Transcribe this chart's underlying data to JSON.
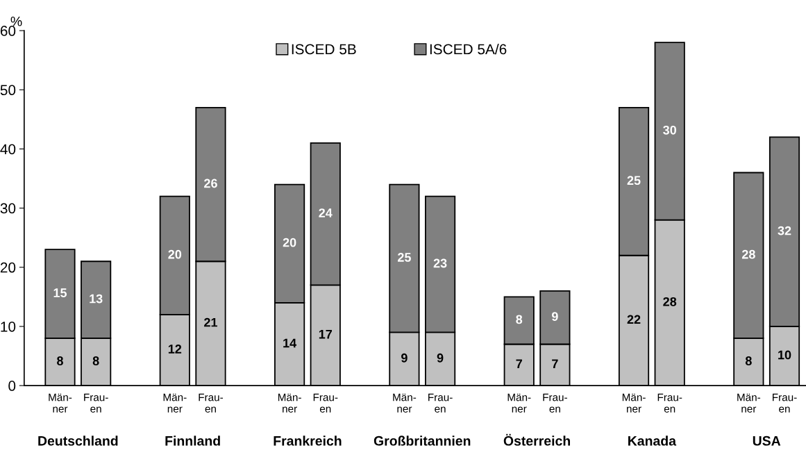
{
  "chart_data": {
    "type": "bar",
    "stacked": true,
    "ylabel": "%",
    "categories": [
      "Män-\nner",
      "Frau-\nen",
      "Män-\nner",
      "Frau-\nen",
      "Män-\nner",
      "Frau-\nen",
      "Män-\nner",
      "Frau-\nen",
      "Män-\nner",
      "Frau-\nen",
      "Män-\nner",
      "Frau-\nen",
      "Män-\nner",
      "Frau-\nen"
    ],
    "series": [
      {
        "name": "ISCED 5B",
        "color": "#c0c0c0",
        "values": [
          8,
          8,
          12,
          21,
          14,
          17,
          9,
          9,
          7,
          7,
          22,
          28,
          8,
          10
        ]
      },
      {
        "name": "ISCED 5A/6",
        "color": "#808080",
        "values": [
          15,
          13,
          20,
          26,
          20,
          24,
          25,
          23,
          8,
          9,
          25,
          30,
          28,
          32
        ]
      }
    ],
    "annotations": [
      "Deutschland",
      "Finnland",
      "Frankreich",
      "Großbritannien",
      "Österreich",
      "Kanada",
      "USA"
    ],
    "ylim": [
      0,
      60
    ],
    "yticks": [
      0,
      10,
      20,
      30,
      40,
      50,
      60
    ],
    "data_labels": true,
    "legend": "top",
    "grid": false
  }
}
